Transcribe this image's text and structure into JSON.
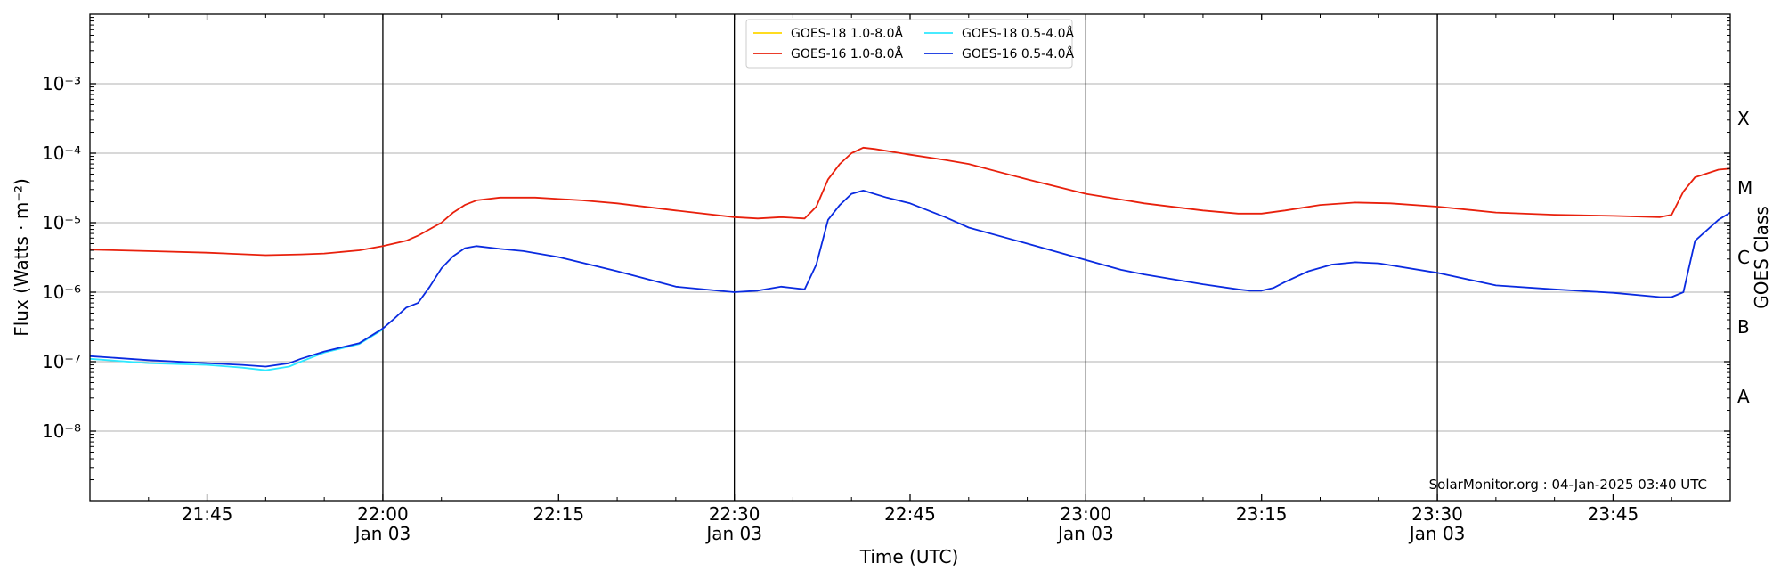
{
  "chart_data": {
    "type": "line",
    "title": "",
    "xlabel": "Time (UTC)",
    "ylabel": "Flux (Watts · m⁻²)",
    "ylabel_right": "GOES Class",
    "yscale": "log",
    "ylim": [
      1e-09,
      0.01
    ],
    "xlim": [
      "21:35",
      "23:55"
    ],
    "grid": true,
    "legend_location": "top-center",
    "x_ticks": [
      {
        "t": "21:45",
        "label": "21:45",
        "sub": ""
      },
      {
        "t": "22:00",
        "label": "22:00",
        "sub": "Jan 03"
      },
      {
        "t": "22:15",
        "label": "22:15",
        "sub": ""
      },
      {
        "t": "22:30",
        "label": "22:30",
        "sub": "Jan 03"
      },
      {
        "t": "22:45",
        "label": "22:45",
        "sub": ""
      },
      {
        "t": "23:00",
        "label": "23:00",
        "sub": "Jan 03"
      },
      {
        "t": "23:15",
        "label": "23:15",
        "sub": ""
      },
      {
        "t": "23:30",
        "label": "23:30",
        "sub": "Jan 03"
      },
      {
        "t": "23:45",
        "label": "23:45",
        "sub": ""
      }
    ],
    "day_lines": [
      "22:00",
      "22:30",
      "23:00",
      "23:30"
    ],
    "y_ticks": [
      {
        "v": 1e-08,
        "label": "10⁻⁸"
      },
      {
        "v": 1e-07,
        "label": "10⁻⁷"
      },
      {
        "v": 1e-06,
        "label": "10⁻⁶"
      },
      {
        "v": 1e-05,
        "label": "10⁻⁵"
      },
      {
        "v": 0.0001,
        "label": "10⁻⁴"
      },
      {
        "v": 0.001,
        "label": "10⁻³"
      }
    ],
    "goes_classes": [
      {
        "label": "A",
        "v": 3.16e-08
      },
      {
        "label": "B",
        "v": 3.16e-07
      },
      {
        "label": "C",
        "v": 3.16e-06
      },
      {
        "label": "M",
        "v": 3.16e-05
      },
      {
        "label": "X",
        "v": 0.000316
      }
    ],
    "series": [
      {
        "name": "GOES-18 1.0-8.0Å",
        "color": "#ffd700",
        "x": [],
        "values": []
      },
      {
        "name": "GOES-16 1.0-8.0Å",
        "color": "#e8200c",
        "x": [
          "21:35",
          "21:40",
          "21:45",
          "21:50",
          "21:53",
          "21:55",
          "21:58",
          "22:00",
          "22:02",
          "22:03",
          "22:05",
          "22:06",
          "22:07",
          "22:08",
          "22:10",
          "22:13",
          "22:17",
          "22:20",
          "22:25",
          "22:30",
          "22:32",
          "22:34",
          "22:36",
          "22:37",
          "22:38",
          "22:39",
          "22:40",
          "22:41",
          "22:42",
          "22:45",
          "22:48",
          "22:50",
          "22:55",
          "23:00",
          "23:05",
          "23:10",
          "23:13",
          "23:15",
          "23:17",
          "23:20",
          "23:23",
          "23:26",
          "23:30",
          "23:35",
          "23:40",
          "23:45",
          "23:49",
          "23:50",
          "23:51",
          "23:52",
          "23:54",
          "23:55"
        ],
        "values": [
          4.1e-06,
          3.9e-06,
          3.7e-06,
          3.4e-06,
          3.5e-06,
          3.6e-06,
          4e-06,
          4.6e-06,
          5.5e-06,
          6.5e-06,
          1e-05,
          1.4e-05,
          1.8e-05,
          2.1e-05,
          2.3e-05,
          2.3e-05,
          2.1e-05,
          1.9e-05,
          1.5e-05,
          1.2e-05,
          1.15e-05,
          1.2e-05,
          1.15e-05,
          1.7e-05,
          4.2e-05,
          7e-05,
          0.0001,
          0.00012,
          0.000115,
          9.5e-05,
          8e-05,
          7e-05,
          4.2e-05,
          2.6e-05,
          1.9e-05,
          1.5e-05,
          1.35e-05,
          1.35e-05,
          1.5e-05,
          1.8e-05,
          1.95e-05,
          1.9e-05,
          1.7e-05,
          1.4e-05,
          1.3e-05,
          1.25e-05,
          1.2e-05,
          1.3e-05,
          2.8e-05,
          4.5e-05,
          5.8e-05,
          6e-05
        ]
      },
      {
        "name": "GOES-18 0.5-4.0Å",
        "color": "#2ee8ff",
        "x": [
          "21:35",
          "21:40",
          "21:45",
          "21:48",
          "21:50",
          "21:52",
          "21:53",
          "21:55",
          "21:58",
          "22:00"
        ],
        "values": [
          1.1e-07,
          9.5e-08,
          9e-08,
          8.2e-08,
          7.5e-08,
          8.5e-08,
          1e-07,
          1.35e-07,
          1.8e-07,
          2.9e-07
        ]
      },
      {
        "name": "GOES-16 0.5-4.0Å",
        "color": "#0a2be0",
        "x": [
          "21:35",
          "21:40",
          "21:45",
          "21:48",
          "21:50",
          "21:52",
          "21:53",
          "21:55",
          "21:58",
          "22:00",
          "22:01",
          "22:02",
          "22:03",
          "22:04",
          "22:05",
          "22:06",
          "22:07",
          "22:08",
          "22:10",
          "22:12",
          "22:15",
          "22:20",
          "22:25",
          "22:30",
          "22:32",
          "22:34",
          "22:36",
          "22:37",
          "22:38",
          "22:39",
          "22:40",
          "22:41",
          "22:43",
          "22:45",
          "22:48",
          "22:50",
          "22:55",
          "23:00",
          "23:03",
          "23:05",
          "23:10",
          "23:13",
          "23:14",
          "23:15",
          "23:16",
          "23:17",
          "23:19",
          "23:21",
          "23:23",
          "23:25",
          "23:30",
          "23:35",
          "23:40",
          "23:45",
          "23:49",
          "23:50",
          "23:51",
          "23:52",
          "23:54",
          "23:55"
        ],
        "values": [
          1.2e-07,
          1.05e-07,
          9.5e-08,
          9e-08,
          8.5e-08,
          9.5e-08,
          1.1e-07,
          1.4e-07,
          1.85e-07,
          3e-07,
          4.2e-07,
          6e-07,
          7e-07,
          1.2e-06,
          2.2e-06,
          3.3e-06,
          4.3e-06,
          4.6e-06,
          4.2e-06,
          3.9e-06,
          3.2e-06,
          2e-06,
          1.2e-06,
          1e-06,
          1.05e-06,
          1.2e-06,
          1.1e-06,
          2.5e-06,
          1.1e-05,
          1.8e-05,
          2.6e-05,
          2.9e-05,
          2.3e-05,
          1.9e-05,
          1.2e-05,
          8.5e-06,
          5e-06,
          2.9e-06,
          2.1e-06,
          1.8e-06,
          1.3e-06,
          1.1e-06,
          1.05e-06,
          1.05e-06,
          1.15e-06,
          1.4e-06,
          2e-06,
          2.5e-06,
          2.7e-06,
          2.6e-06,
          1.9e-06,
          1.25e-06,
          1.1e-06,
          9.8e-07,
          8.5e-07,
          8.5e-07,
          1e-06,
          5.5e-06,
          1.1e-05,
          1.4e-05
        ]
      }
    ],
    "annotation": "SolarMonitor.org : 04-Jan-2025 03:40 UTC"
  }
}
